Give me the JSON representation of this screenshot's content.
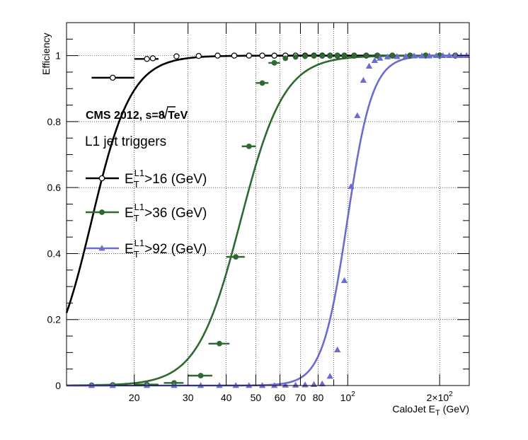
{
  "chart_data": {
    "type": "line",
    "xlabel": "CaloJet E",
    "xlabel_sub": "T",
    "xlabel_unit": " (GeV)",
    "ylabel": "Efficiency",
    "xscale": "log",
    "xlim": [
      12,
      250
    ],
    "ylim": [
      0,
      1.1
    ],
    "grid": true,
    "header": "CMS 2012, √s=8 TeV",
    "header_prefix": "CMS 2012, ",
    "header_radicand": "s",
    "header_suffix": "=8 TeV",
    "subtitle": "L1 jet triggers",
    "legend_placement": "left",
    "x_ticks": [
      {
        "value": 20,
        "label": "20"
      },
      {
        "value": 30,
        "label": "30"
      },
      {
        "value": 40,
        "label": "40"
      },
      {
        "value": 50,
        "label": "50"
      },
      {
        "value": 60,
        "label": "60"
      },
      {
        "value": 70,
        "label": "70"
      },
      {
        "value": 80,
        "label": "80"
      },
      {
        "value": 100,
        "label": "10",
        "sup": "2"
      },
      {
        "value": 200,
        "label": "2×10",
        "sup": "2"
      }
    ],
    "y_ticks": [
      {
        "value": 0,
        "label": "0"
      },
      {
        "value": 0.2,
        "label": "0.2"
      },
      {
        "value": 0.4,
        "label": "0.4"
      },
      {
        "value": 0.6,
        "label": "0.6"
      },
      {
        "value": 0.8,
        "label": "0.8"
      },
      {
        "value": 1,
        "label": "1"
      }
    ],
    "series": [
      {
        "name": "E_T^L1>16 (GeV)",
        "legend_main": "E",
        "legend_sub": "T",
        "legend_sup": "L1",
        "legend_rest": ">16 (GeV)",
        "color": "#000000",
        "marker": "open-circle",
        "curve": {
          "type": "sigmoid",
          "mid": 14.5,
          "width": 0.065
        },
        "points": [
          {
            "x": 17,
            "y": 0.933,
            "xlo": 14.5,
            "xhi": 20
          },
          {
            "x": 22,
            "y": 0.99,
            "xlo": 20,
            "xhi": 24
          },
          {
            "x": 23,
            "y": 0.992
          },
          {
            "x": 27.5,
            "y": 0.998
          },
          {
            "x": 32.5,
            "y": 0.999
          },
          {
            "x": 37.5,
            "y": 1.0
          },
          {
            "x": 42.5,
            "y": 1.0
          },
          {
            "x": 47.5,
            "y": 1.0
          },
          {
            "x": 52.5,
            "y": 1.0
          },
          {
            "x": 57.5,
            "y": 1.0
          },
          {
            "x": 62.5,
            "y": 1.0
          },
          {
            "x": 67.5,
            "y": 1.0
          },
          {
            "x": 72.5,
            "y": 1.0
          },
          {
            "x": 77.5,
            "y": 1.0
          },
          {
            "x": 82.5,
            "y": 1.0
          },
          {
            "x": 87.5,
            "y": 1.0
          },
          {
            "x": 92.5,
            "y": 1.0
          },
          {
            "x": 97.5,
            "y": 1.0
          },
          {
            "x": 105,
            "y": 1.0
          },
          {
            "x": 115,
            "y": 1.0
          },
          {
            "x": 125,
            "y": 1.0
          },
          {
            "x": 140,
            "y": 1.0
          },
          {
            "x": 160,
            "y": 1.0
          },
          {
            "x": 180,
            "y": 1.0
          },
          {
            "x": 200,
            "y": 1.0
          },
          {
            "x": 225,
            "y": 1.0
          }
        ]
      },
      {
        "name": "E_T^L1>36 (GeV)",
        "legend_main": "E",
        "legend_sub": "T",
        "legend_sup": "L1",
        "legend_rest": ">36 (GeV)",
        "color": "#2e6930",
        "marker": "filled-circle",
        "curve": {
          "type": "sigmoid",
          "mid": 44.6,
          "width": 0.071
        },
        "points": [
          {
            "x": 14.5,
            "y": 0.001,
            "xlo": 12.5,
            "xhi": 16.5
          },
          {
            "x": 17,
            "y": 0.002,
            "xlo": 15,
            "xhi": 19
          },
          {
            "x": 22,
            "y": 0.003,
            "xlo": 20,
            "xhi": 24
          },
          {
            "x": 27,
            "y": 0.008,
            "xlo": 25,
            "xhi": 29
          },
          {
            "x": 33,
            "y": 0.03,
            "xlo": 30,
            "xhi": 36
          },
          {
            "x": 38,
            "y": 0.127,
            "xlo": 35,
            "xhi": 41
          },
          {
            "x": 43,
            "y": 0.39,
            "xlo": 40,
            "xhi": 46
          },
          {
            "x": 47.5,
            "y": 0.725,
            "xlo": 45,
            "xhi": 50
          },
          {
            "x": 52.5,
            "y": 0.917,
            "xlo": 50,
            "xhi": 55
          },
          {
            "x": 57.5,
            "y": 0.978,
            "xlo": 55,
            "xhi": 60
          },
          {
            "x": 62.5,
            "y": 0.992
          },
          {
            "x": 67.5,
            "y": 0.996
          },
          {
            "x": 72.5,
            "y": 0.998
          },
          {
            "x": 77.5,
            "y": 0.999
          },
          {
            "x": 82.5,
            "y": 0.999
          },
          {
            "x": 87.5,
            "y": 1.0
          },
          {
            "x": 92.5,
            "y": 1.0
          },
          {
            "x": 97.5,
            "y": 1.0
          },
          {
            "x": 105,
            "y": 1.0
          },
          {
            "x": 115,
            "y": 1.0
          },
          {
            "x": 125,
            "y": 1.0
          },
          {
            "x": 140,
            "y": 1.0
          },
          {
            "x": 160,
            "y": 1.0
          },
          {
            "x": 180,
            "y": 1.0
          },
          {
            "x": 200,
            "y": 1.0
          },
          {
            "x": 225,
            "y": 1.0
          }
        ]
      },
      {
        "name": "E_T^L1>92 (GeV)",
        "legend_main": "E",
        "legend_sub": "T",
        "legend_sup": "L1",
        "legend_rest": ">92 (GeV)",
        "color": "#6b6bd1",
        "marker": "filled-triangle",
        "curve": {
          "type": "sigmoid",
          "mid": 99.7,
          "width": 0.041
        },
        "points": [
          {
            "x": 14.5,
            "y": 0.0,
            "xlo": 12.5,
            "xhi": 16.5
          },
          {
            "x": 17,
            "y": 0.0
          },
          {
            "x": 22,
            "y": 0.0
          },
          {
            "x": 27,
            "y": 0.0
          },
          {
            "x": 33,
            "y": 0.0
          },
          {
            "x": 38,
            "y": 0.0
          },
          {
            "x": 43,
            "y": 0.0
          },
          {
            "x": 47.5,
            "y": 0.0
          },
          {
            "x": 52.5,
            "y": 0.0
          },
          {
            "x": 57.5,
            "y": 0.0
          },
          {
            "x": 62.5,
            "y": 0.001
          },
          {
            "x": 67.5,
            "y": 0.001
          },
          {
            "x": 72.5,
            "y": 0.002
          },
          {
            "x": 77.5,
            "y": 0.003
          },
          {
            "x": 82.5,
            "y": 0.005
          },
          {
            "x": 87.5,
            "y": 0.028
          },
          {
            "x": 92.5,
            "y": 0.108
          },
          {
            "x": 97.5,
            "y": 0.318
          },
          {
            "x": 102.5,
            "y": 0.603
          },
          {
            "x": 107.5,
            "y": 0.818
          },
          {
            "x": 112.5,
            "y": 0.925
          },
          {
            "x": 117.5,
            "y": 0.968
          },
          {
            "x": 122.5,
            "y": 0.985
          },
          {
            "x": 127.5,
            "y": 0.992
          },
          {
            "x": 135,
            "y": 0.996
          },
          {
            "x": 145,
            "y": 0.997
          },
          {
            "x": 155,
            "y": 0.998
          },
          {
            "x": 165,
            "y": 0.999
          },
          {
            "x": 175,
            "y": 0.999
          },
          {
            "x": 185,
            "y": 0.999
          },
          {
            "x": 195,
            "y": 1.0
          },
          {
            "x": 205,
            "y": 1.0
          },
          {
            "x": 215,
            "y": 1.0
          },
          {
            "x": 225,
            "y": 1.0
          },
          {
            "x": 235,
            "y": 1.0
          },
          {
            "x": 245,
            "y": 1.0
          }
        ]
      }
    ]
  }
}
